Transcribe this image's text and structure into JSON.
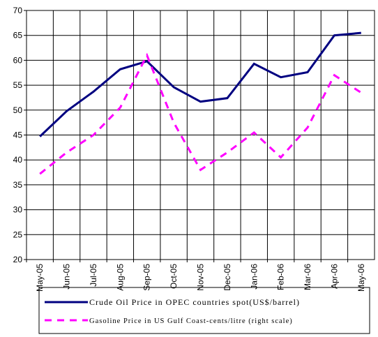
{
  "chart_data": {
    "type": "line",
    "categories": [
      "May-05",
      "Jun-05",
      "Jul-05",
      "Aug-05",
      "Sep-05",
      "Oct-05",
      "Nov-05",
      "Dec-05",
      "Jan-06",
      "Feb-06",
      "Mar-06",
      "Apr-06",
      "May-06"
    ],
    "series": [
      {
        "name": "Crude Oil Price in OPEC countries spot(US$/barrel)",
        "color": "#000080",
        "dash": false,
        "values": [
          44.7,
          49.8,
          53.7,
          58.2,
          59.8,
          54.6,
          51.7,
          52.4,
          59.3,
          56.6,
          57.6,
          65.0,
          65.5
        ]
      },
      {
        "name": "Gasoline Price in US Gulf Coast-cents/litre (right scale)",
        "color": "#ff00ff",
        "dash": true,
        "values": [
          37.2,
          41.5,
          45.0,
          50.5,
          61.0,
          47.5,
          38.0,
          41.5,
          45.5,
          40.5,
          46.5,
          57.0,
          53.5
        ]
      }
    ],
    "ylim": [
      20,
      70
    ],
    "yticks": [
      20,
      25,
      30,
      35,
      40,
      45,
      50,
      55,
      60,
      65,
      70
    ],
    "grid": true
  }
}
